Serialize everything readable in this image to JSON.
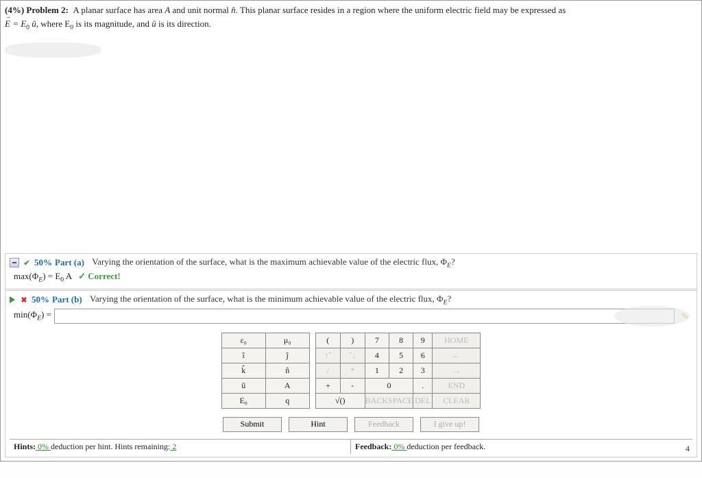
{
  "problem": {
    "weight": "(4%)",
    "label": "Problem 2:",
    "text_1": "A planar surface has area ",
    "A": "A",
    "text_2": " and unit normal ",
    "nhat": "n̂",
    "text_3": ". This planar surface resides in a region where the uniform electric field may be expressed as ",
    "eq_lhs": "E",
    "eq_eqs": " = E",
    "eq_sub0a": "0",
    "eq_uhat": " û",
    "eq_tail": ", where E",
    "eq_sub0b": "0",
    "eq_tail2": " is its magnitude, and ",
    "eq_uhat2": "û",
    "eq_tail3": " is its direction."
  },
  "part_a": {
    "pct": "50%",
    "label": "Part (a)",
    "question": "Varying the orientation of the surface, what is the maximum achievable value of the electric flux, Φ",
    "phi_sub": "E",
    "qmark": "?",
    "answer_lhs": "max(Φ",
    "answer_sub": "E",
    "answer_mid": ") = E",
    "answer_sub2": "0",
    "answer_rhs": " A",
    "correct": "✓ Correct!"
  },
  "part_b": {
    "pct": "50%",
    "label": "Part (b)",
    "question": "Varying the orientation of the surface, what is the minimum achievable value of the electric flux, Φ",
    "phi_sub": "E",
    "qmark": "?",
    "input_lhs": "min(Φ",
    "input_sub": "E",
    "input_mid": ") =",
    "input_value": "",
    "pct_indicator": "%"
  },
  "keypad": {
    "sym": {
      "eps0": "ε₀",
      "mu0": "μ₀",
      "ihat": "î",
      "jhat": "ĵ",
      "khat": "k̂",
      "nhat": "n̂",
      "uhat": "û",
      "A": "A",
      "E0": "E₀",
      "q": "q"
    },
    "ops": {
      "lp": "(",
      "rp": ")",
      "uparr": "↑ˆ",
      "dnarr": "ˆ↓",
      "slash": "/",
      "ast": "*",
      "plus": "+",
      "minus": "-",
      "sqrt": "√()"
    },
    "nums": {
      "n7": "7",
      "n8": "8",
      "n9": "9",
      "n4": "4",
      "n5": "5",
      "n6": "6",
      "n1": "1",
      "n2": "2",
      "n3": "3",
      "n0": "0",
      "dot": "."
    },
    "labels": {
      "home": "HOME",
      "left": "←",
      "right": "→",
      "end": "END",
      "bksp": "BACKSPACE",
      "del": "DEL",
      "clear": "CLEAR"
    }
  },
  "buttons": {
    "submit": "Submit",
    "hint": "Hint",
    "feedback": "Feedback",
    "giveup": "I give up!"
  },
  "footer": {
    "hints_label": "Hints:",
    "hints_pct": " 0% ",
    "hints_tail": "deduction per hint. Hints remaining:",
    "hints_remain": " 2",
    "fb_label": "Feedback:",
    "fb_pct": " 0% ",
    "fb_tail": "deduction per feedback."
  },
  "extra": {
    "four": "4"
  }
}
